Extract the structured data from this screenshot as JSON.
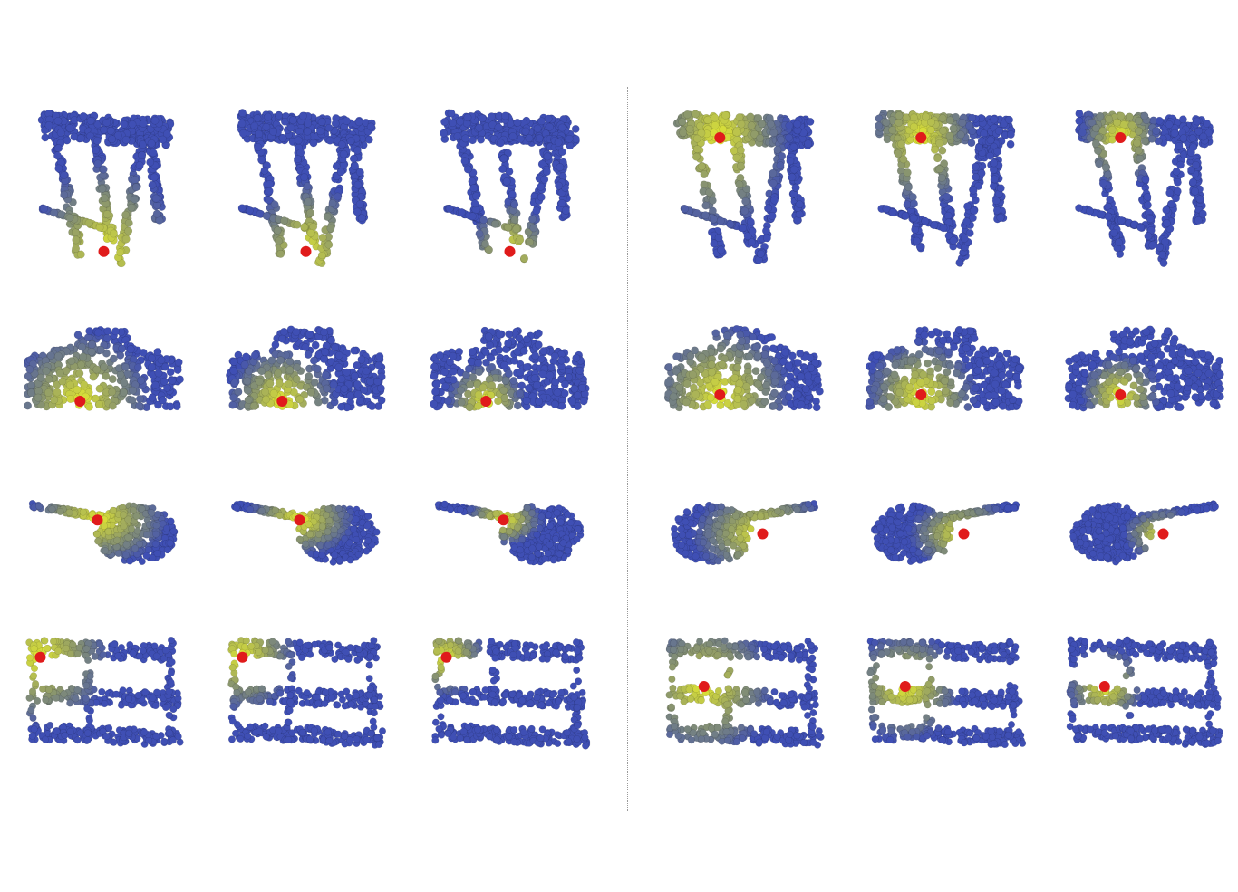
{
  "figure": {
    "groups": [
      {
        "name": "left",
        "rows": [
          {
            "shape": "table",
            "panels": [
              {
                "highlight": "leg"
              },
              {
                "highlight": "leg"
              },
              {
                "highlight": "leg"
              }
            ]
          },
          {
            "shape": "car",
            "panels": [
              {
                "highlight": "side"
              },
              {
                "highlight": "side"
              },
              {
                "highlight": "side"
              }
            ]
          },
          {
            "shape": "guitar",
            "panels": [
              {
                "highlight": "neck-join"
              },
              {
                "highlight": "neck-join"
              },
              {
                "highlight": "neck-join"
              }
            ]
          },
          {
            "shape": "shelf",
            "panels": [
              {
                "highlight": "corner"
              },
              {
                "highlight": "corner"
              },
              {
                "highlight": "corner"
              }
            ]
          }
        ]
      },
      {
        "name": "right",
        "rows": [
          {
            "shape": "table",
            "panels": [
              {
                "highlight": "top"
              },
              {
                "highlight": "top"
              },
              {
                "highlight": "top"
              }
            ]
          },
          {
            "shape": "car",
            "panels": [
              {
                "highlight": "front"
              },
              {
                "highlight": "front"
              },
              {
                "highlight": "front"
              }
            ]
          },
          {
            "shape": "guitar",
            "panels": [
              {
                "highlight": "body"
              },
              {
                "highlight": "body"
              },
              {
                "highlight": "body"
              }
            ]
          },
          {
            "shape": "shelf",
            "panels": [
              {
                "highlight": "middle"
              },
              {
                "highlight": "middle"
              },
              {
                "highlight": "middle"
              }
            ]
          }
        ]
      }
    ],
    "colors": {
      "near": "#e6ec2e",
      "mid": "#8f9a6a",
      "far": "#3f4fb4",
      "keypoint": "#e01b1b",
      "divider": "#9a9a9a"
    }
  }
}
